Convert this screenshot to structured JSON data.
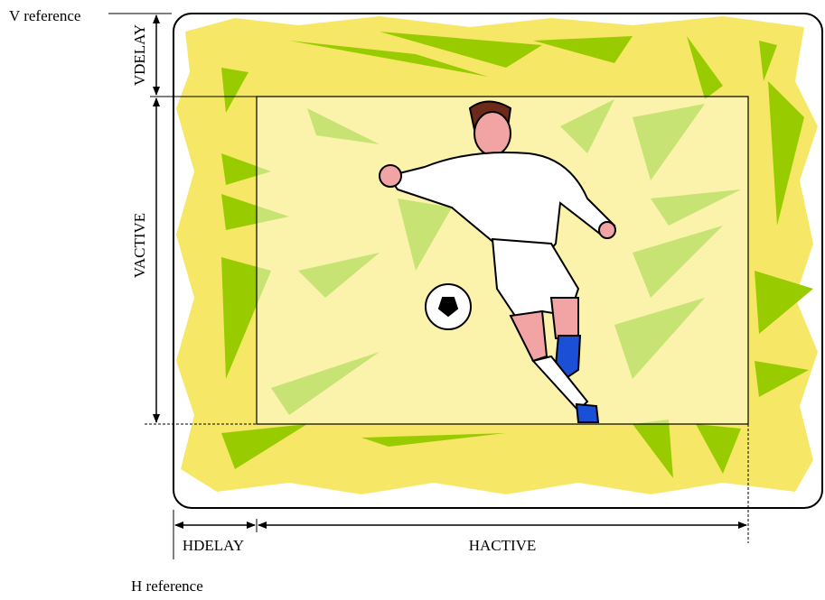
{
  "labels": {
    "v_reference": "V reference",
    "vdelay": "VDELAY",
    "vactive": "VACTIVE",
    "hdelay": "HDELAY",
    "hactive": "HACTIVE",
    "h_reference": "H reference"
  }
}
